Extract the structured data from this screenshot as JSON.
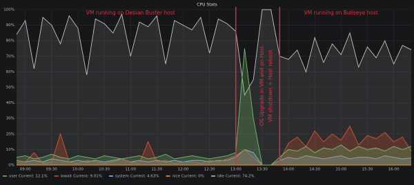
{
  "chart_data": {
    "type": "line",
    "title": "CPU Stats",
    "x": [
      "08:50",
      "09:00",
      "09:10",
      "09:20",
      "09:30",
      "09:40",
      "09:50",
      "10:00",
      "10:10",
      "10:20",
      "10:30",
      "10:40",
      "10:50",
      "11:00",
      "11:10",
      "11:20",
      "11:30",
      "11:40",
      "11:50",
      "12:00",
      "12:10",
      "12:20",
      "12:30",
      "12:40",
      "12:50",
      "13:00",
      "13:10",
      "13:20",
      "13:30",
      "13:40",
      "13:50",
      "14:00",
      "14:10",
      "14:20",
      "14:30",
      "14:40",
      "14:50",
      "15:00",
      "15:10",
      "15:20",
      "15:30",
      "15:40",
      "15:50",
      "16:00",
      "16:10",
      "16:20"
    ],
    "xticks": [
      "09:00",
      "09:30",
      "10:00",
      "10:30",
      "11:00",
      "11:30",
      "12:00",
      "12:30",
      "13:00",
      "13:30",
      "14:00",
      "14:30",
      "15:00",
      "15:30",
      "16:00"
    ],
    "ylim": [
      0,
      100
    ],
    "yticks": [
      {
        "value": 0,
        "label": "0%"
      },
      {
        "value": 10,
        "label": "10%"
      },
      {
        "value": 20,
        "label": "20%"
      },
      {
        "value": 30,
        "label": "30%"
      },
      {
        "value": 40,
        "label": "40%"
      },
      {
        "value": 50,
        "label": "50%"
      },
      {
        "value": 60,
        "label": "60%"
      },
      {
        "value": 70,
        "label": "70%"
      },
      {
        "value": 80,
        "label": "80%"
      },
      {
        "value": 90,
        "label": "90%"
      },
      {
        "value": 100,
        "label": "100%"
      }
    ],
    "grid": true,
    "markers": [
      "13:00",
      "13:50"
    ],
    "annotations": [
      {
        "text": "VM running on Debian Buster host",
        "x": "11:00"
      },
      {
        "text": "VM running on Bullseye host",
        "x": "15:00"
      },
      {
        "text": "OS Upgrade in VM and on Host",
        "x": "13:30",
        "rotated": true
      },
      {
        "text": "VM shutdown + Host reboot",
        "x": "13:40",
        "rotated": true
      }
    ],
    "series": [
      {
        "name": "user",
        "color": "#73bf69",
        "legend_text": "Current: 12.1%",
        "values": [
          5,
          6,
          4,
          5,
          7,
          5,
          4,
          6,
          5,
          4,
          6,
          5,
          4,
          5,
          6,
          4,
          5,
          7,
          4,
          5,
          6,
          5,
          4,
          5,
          6,
          8,
          75,
          30,
          0,
          0,
          5,
          10,
          9,
          12,
          8,
          11,
          10,
          13,
          9,
          12,
          10,
          11,
          9,
          12,
          10,
          12.1
        ]
      },
      {
        "name": "iowait",
        "color": "#e0502f",
        "legend_text": "Current: 9.01%",
        "values": [
          3,
          2,
          8,
          1,
          2,
          20,
          2,
          1,
          3,
          2,
          1,
          2,
          4,
          2,
          1,
          15,
          2,
          3,
          1,
          2,
          2,
          1,
          3,
          2,
          4,
          6,
          10,
          5,
          0,
          0,
          3,
          14,
          18,
          12,
          22,
          15,
          20,
          16,
          25,
          13,
          19,
          17,
          21,
          15,
          18,
          9.01
        ]
      },
      {
        "name": "system",
        "color": "#8ab8ff",
        "legend_text": "Current: 4.63%",
        "values": [
          3,
          2,
          3,
          2,
          4,
          3,
          2,
          3,
          2,
          3,
          2,
          3,
          4,
          2,
          3,
          2,
          3,
          2,
          3,
          2,
          3,
          3,
          2,
          3,
          3,
          5,
          10,
          8,
          0,
          0,
          3,
          5,
          4,
          6,
          5,
          4,
          5,
          6,
          4,
          5,
          5,
          4,
          6,
          5,
          4,
          4.63
        ]
      },
      {
        "name": "nice",
        "color": "#ff9830",
        "legend_text": "Current: 0%",
        "values": [
          0,
          0,
          0,
          0,
          0,
          0,
          0,
          0,
          0,
          0,
          0,
          0,
          0,
          0,
          0,
          0,
          0,
          0,
          0,
          0,
          0,
          0,
          0,
          0,
          0,
          0,
          0,
          0,
          0,
          0,
          0,
          0,
          0,
          0,
          0,
          0,
          0,
          0,
          0,
          0,
          0,
          0,
          0,
          0,
          0,
          0
        ]
      },
      {
        "name": "idle",
        "color": "#c4c4c4",
        "legend_text": "Current: 74.2%",
        "values": [
          84,
          93,
          62,
          95,
          90,
          78,
          96,
          88,
          58,
          94,
          91,
          85,
          97,
          70,
          92,
          89,
          96,
          65,
          93,
          90,
          87,
          95,
          72,
          94,
          91,
          86,
          45,
          55,
          100,
          100,
          70,
          68,
          74,
          60,
          82,
          66,
          78,
          71,
          85,
          63,
          76,
          69,
          80,
          65,
          77,
          74.2
        ]
      }
    ]
  }
}
